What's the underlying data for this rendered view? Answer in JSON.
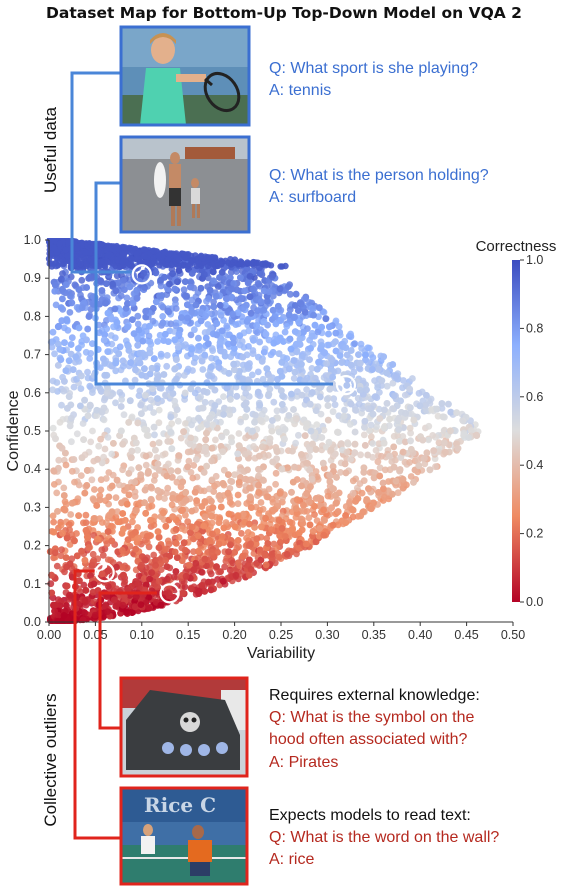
{
  "chart_data": {
    "type": "scatter",
    "title": "Dataset Map for Bottom-Up Top-Down Model on VQA 2",
    "xlabel": "Variability",
    "ylabel": "Confidence",
    "xlim": [
      0.0,
      0.5
    ],
    "ylim": [
      0.0,
      1.0
    ],
    "x_ticks": [
      "0.00",
      "0.05",
      "0.10",
      "0.15",
      "0.20",
      "0.25",
      "0.30",
      "0.35",
      "0.40",
      "0.45",
      "0.50"
    ],
    "y_ticks": [
      "0.0",
      "0.1",
      "0.2",
      "0.3",
      "0.4",
      "0.5",
      "0.6",
      "0.7",
      "0.8",
      "0.9",
      "1.0"
    ],
    "grid": false,
    "colorbar": {
      "title": "Correctness",
      "range": [
        0.0,
        1.0
      ],
      "ticks": [
        "0.0",
        "0.2",
        "0.4",
        "0.6",
        "0.8",
        "1.0"
      ],
      "colormap": "coolwarm_r",
      "low_color": "#b40426",
      "mid_color": "#dddddd",
      "high_color": "#3b4cc0"
    },
    "highlighted_points": [
      {
        "x": 0.1,
        "y": 0.91
      },
      {
        "x": 0.32,
        "y": 0.62
      },
      {
        "x": 0.06,
        "y": 0.13
      },
      {
        "x": 0.13,
        "y": 0.075
      }
    ]
  },
  "region_labels": {
    "useful": "Useful data",
    "outliers": "Collective outliers"
  },
  "examples": [
    {
      "image": "tennis-player",
      "region": "useful",
      "color": "#3b6fd1",
      "lines": [
        "Q: What sport is she playing?",
        "A: tennis"
      ]
    },
    {
      "image": "beach-surfboard",
      "region": "useful",
      "color": "#3b6fd1",
      "lines": [
        "Q: What is the person holding?",
        "A: surfboard"
      ]
    },
    {
      "image": "car-hood-skull",
      "region": "outliers",
      "color": "#e0241c",
      "heading": "Requires external knowledge:",
      "lines": [
        "Q: What is the symbol on the",
        "hood often associated with?",
        "A: Pirates"
      ]
    },
    {
      "image": "tennis-wall-text",
      "region": "outliers",
      "color": "#e0241c",
      "heading": "Expects models to read text:",
      "lines": [
        "Q: What is the word on the wall?",
        "A: rice"
      ]
    }
  ]
}
